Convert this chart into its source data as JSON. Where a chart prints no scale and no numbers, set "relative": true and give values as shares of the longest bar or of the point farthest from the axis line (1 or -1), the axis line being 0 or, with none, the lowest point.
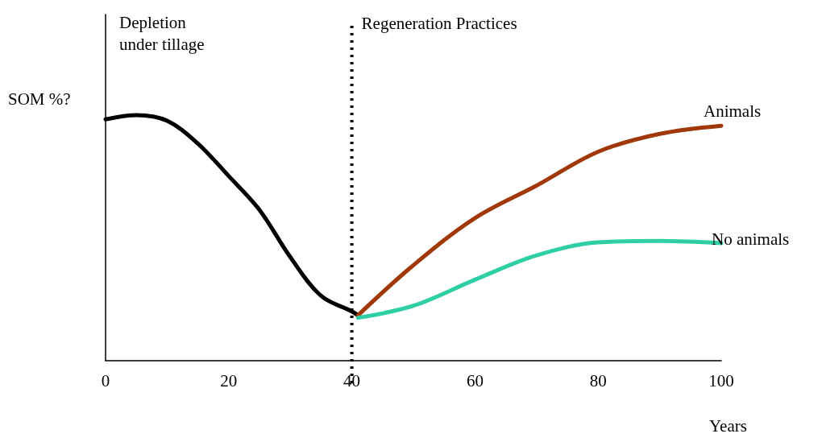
{
  "chart_data": {
    "type": "line",
    "relative": true,
    "xlabel": "Years",
    "ylabel": "SOM %?",
    "annotations": [
      "Depletion\nunder tillage"
    ],
    "xlim": [
      0,
      100
    ],
    "xticks": [
      0,
      20,
      40,
      60,
      80,
      100
    ],
    "series": [
      {
        "color": "#000000",
        "x": [
          0,
          5,
          10,
          15,
          20,
          25,
          30,
          35,
          40,
          41
        ],
        "values": [
          0.983,
          1,
          0.977,
          0.884,
          0.752,
          0.614,
          0.422,
          0.264,
          0.201,
          0.185
        ]
      },
      {
        "name": "Animals",
        "color": "#a0380a",
        "x": [
          41,
          50,
          60,
          70,
          80,
          90,
          100
        ],
        "values": [
          0.185,
          0.389,
          0.581,
          0.713,
          0.851,
          0.924,
          0.957
        ]
      },
      {
        "name": "No animals",
        "color": "#2ecfa4",
        "x": [
          41,
          50,
          60,
          70,
          80,
          90,
          100
        ],
        "values": [
          0.175,
          0.224,
          0.33,
          0.429,
          0.482,
          0.488,
          0.479
        ]
      }
    ],
    "ref_lines": [
      {
        "axis": "x",
        "value": 40,
        "label": "Regeneration Practices",
        "color": "#000000",
        "line_style": "dotted"
      }
    ],
    "grid": false,
    "legend": false,
    "marker": "none",
    "line_style": "solid"
  }
}
